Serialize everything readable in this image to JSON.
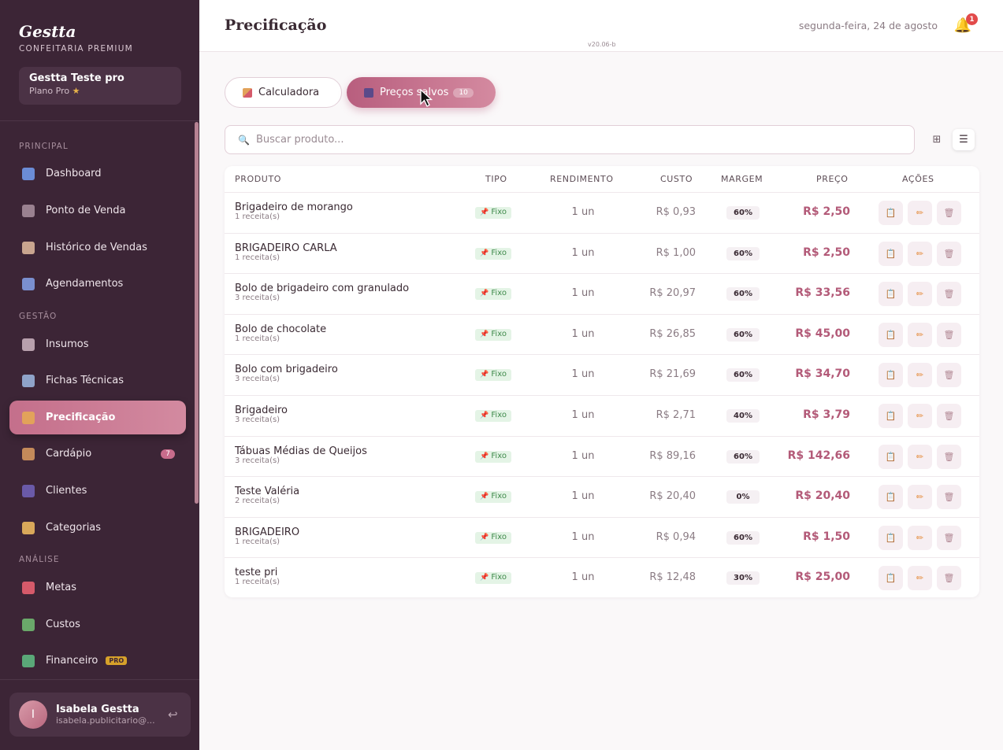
{
  "sidebar": {
    "brand": "Gestta",
    "brand_sub": "CONFEITARIA PREMIUM",
    "account_name": "Gestta Teste pro",
    "account_plan": "Plano Pro",
    "sections": {
      "principal": "PRINCIPAL",
      "gestao": "GESTÃO",
      "analise": "ANÁLISE"
    },
    "items": [
      {
        "label": "Dashboard",
        "icon": "chart-icon",
        "color": "#6b8cd6"
      },
      {
        "label": "Ponto de Venda",
        "icon": "cart-icon",
        "color": "#9a8190"
      },
      {
        "label": "Histórico de Vendas",
        "icon": "receipt-icon",
        "color": "#c9a58f"
      },
      {
        "label": "Agendamentos",
        "icon": "calendar-icon",
        "color": "#7a8fcf"
      },
      {
        "label": "Insumos",
        "icon": "jar-icon",
        "color": "#b8a0ad"
      },
      {
        "label": "Fichas Técnicas",
        "icon": "book-icon",
        "color": "#8fa3c9"
      },
      {
        "label": "Precificação",
        "icon": "abacus-icon",
        "color": "#e2a25a",
        "active": true
      },
      {
        "label": "Cardápio",
        "icon": "menu-book-icon",
        "color": "#c48a5a",
        "badge": "7"
      },
      {
        "label": "Clientes",
        "icon": "users-icon",
        "color": "#6a5aa8"
      },
      {
        "label": "Categorias",
        "icon": "tag-icon",
        "color": "#d9a85a"
      },
      {
        "label": "Metas",
        "icon": "target-icon",
        "color": "#d55a6a"
      },
      {
        "label": "Custos",
        "icon": "money-icon",
        "color": "#6aa86a"
      },
      {
        "label": "Financeiro",
        "icon": "finance-icon",
        "color": "#5aa878",
        "pro": "PRO"
      }
    ],
    "user": {
      "initial": "I",
      "name": "Isabela Gestta",
      "email": "isabela.publicitario@..."
    }
  },
  "header": {
    "title": "Precificação",
    "version": "v20.06-b",
    "date": "segunda-feira, 24 de agosto",
    "notifications": "1"
  },
  "tabs": {
    "calc": "Calculadora",
    "saved": "Preços salvos",
    "saved_count": "10"
  },
  "search": {
    "placeholder": "Buscar produto..."
  },
  "table": {
    "headers": {
      "produto": "PRODUTO",
      "tipo": "TIPO",
      "rendimento": "RENDIMENTO",
      "custo": "CUSTO",
      "margem": "MARGEM",
      "preco": "PREÇO",
      "acoes": "AÇÕES"
    },
    "rows": [
      {
        "name": "Brigadeiro de morango",
        "recipes": "1 receita(s)",
        "tipo": "Fixo",
        "rend": "1 un",
        "custo": "R$ 0,93",
        "margem": "60%",
        "preco": "R$ 2,50"
      },
      {
        "name": "BRIGADEIRO CARLA",
        "recipes": "1 receita(s)",
        "tipo": "Fixo",
        "rend": "1 un",
        "custo": "R$ 1,00",
        "margem": "60%",
        "preco": "R$ 2,50"
      },
      {
        "name": "Bolo de brigadeiro com granulado",
        "recipes": "3 receita(s)",
        "tipo": "Fixo",
        "rend": "1 un",
        "custo": "R$ 20,97",
        "margem": "60%",
        "preco": "R$ 33,56"
      },
      {
        "name": "Bolo de chocolate",
        "recipes": "1 receita(s)",
        "tipo": "Fixo",
        "rend": "1 un",
        "custo": "R$ 26,85",
        "margem": "60%",
        "preco": "R$ 45,00"
      },
      {
        "name": "Bolo com brigadeiro",
        "recipes": "3 receita(s)",
        "tipo": "Fixo",
        "rend": "1 un",
        "custo": "R$ 21,69",
        "margem": "60%",
        "preco": "R$ 34,70"
      },
      {
        "name": "Brigadeiro",
        "recipes": "3 receita(s)",
        "tipo": "Fixo",
        "rend": "1 un",
        "custo": "R$ 2,71",
        "margem": "40%",
        "preco": "R$ 3,79"
      },
      {
        "name": "Tábuas Médias de Queijos",
        "recipes": "3 receita(s)",
        "tipo": "Fixo",
        "rend": "1 un",
        "custo": "R$ 89,16",
        "margem": "60%",
        "preco": "R$ 142,66"
      },
      {
        "name": "Teste Valéria",
        "recipes": "2 receita(s)",
        "tipo": "Fixo",
        "rend": "1 un",
        "custo": "R$ 20,40",
        "margem": "0%",
        "preco": "R$ 20,40"
      },
      {
        "name": "BRIGADEIRO",
        "recipes": "1 receita(s)",
        "tipo": "Fixo",
        "rend": "1 un",
        "custo": "R$ 0,94",
        "margem": "60%",
        "preco": "R$ 1,50"
      },
      {
        "name": "teste pri",
        "recipes": "1 receita(s)",
        "tipo": "Fixo",
        "rend": "1 un",
        "custo": "R$ 12,48",
        "margem": "30%",
        "preco": "R$ 25,00"
      }
    ]
  }
}
